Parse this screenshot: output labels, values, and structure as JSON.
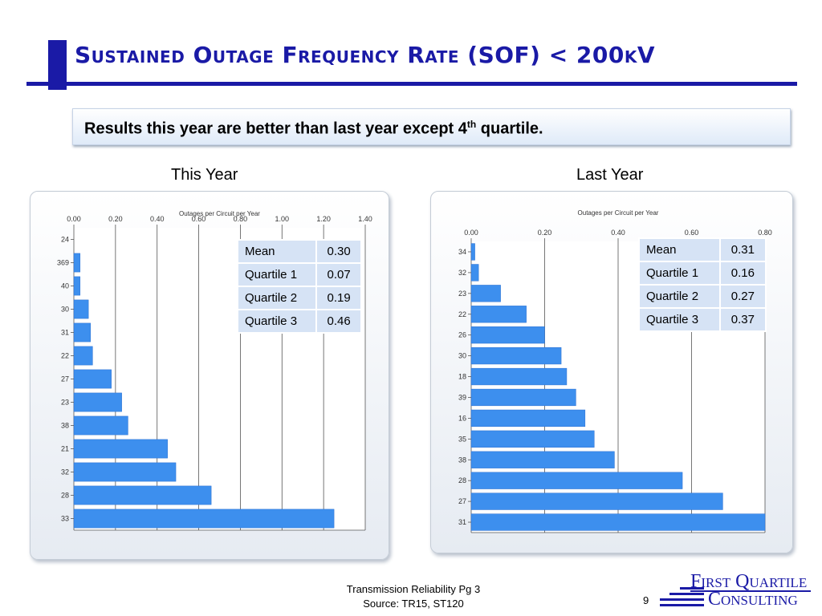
{
  "header": {
    "title": "Sustained Outage Frequency Rate (SOF) < 200kV"
  },
  "callout": {
    "text_main": "Results this year are better than last year except 4",
    "text_sup": "th",
    "text_tail": " quartile."
  },
  "charts": {
    "this_year": {
      "heading": "This Year",
      "stats": [
        {
          "label": "Mean",
          "value": "0.30"
        },
        {
          "label": "Quartile 1",
          "value": "0.07"
        },
        {
          "label": "Quartile 2",
          "value": "0.19"
        },
        {
          "label": "Quartile 3",
          "value": "0.46"
        }
      ]
    },
    "last_year": {
      "heading": "Last Year",
      "stats": [
        {
          "label": "Mean",
          "value": "0.31"
        },
        {
          "label": "Quartile 1",
          "value": "0.16"
        },
        {
          "label": "Quartile 2",
          "value": "0.27"
        },
        {
          "label": "Quartile 3",
          "value": "0.37"
        }
      ]
    }
  },
  "chart_data": [
    {
      "type": "bar",
      "orientation": "horizontal",
      "title": "Outages per Circuit per Year",
      "xlim": [
        0,
        1.4
      ],
      "ticks": [
        "0.00",
        "0.20",
        "0.40",
        "0.60",
        "0.80",
        "1.00",
        "1.20",
        "1.40"
      ],
      "categories": [
        "24",
        "369",
        "40",
        "30",
        "31",
        "22",
        "27",
        "23",
        "38",
        "21",
        "32",
        "28",
        "33"
      ],
      "values": [
        0.0,
        0.03,
        0.03,
        0.07,
        0.08,
        0.09,
        0.18,
        0.23,
        0.26,
        0.45,
        0.49,
        0.66,
        1.25
      ],
      "grid": true,
      "color": "#3d8fee"
    },
    {
      "type": "bar",
      "orientation": "horizontal",
      "title": "Outages per Circuit per Year",
      "xlim": [
        0,
        0.8
      ],
      "ticks": [
        "0.00",
        "0.20",
        "0.40",
        "0.60",
        "0.80"
      ],
      "categories": [
        "34",
        "32",
        "23",
        "22",
        "26",
        "30",
        "18",
        "39",
        "16",
        "35",
        "38",
        "28",
        "27",
        "31"
      ],
      "values": [
        0.01,
        0.02,
        0.08,
        0.15,
        0.2,
        0.245,
        0.26,
        0.285,
        0.31,
        0.335,
        0.39,
        0.575,
        0.685,
        0.8
      ],
      "grid": true,
      "color": "#3d8fee"
    }
  ],
  "footer": {
    "line1": "Transmission Reliability Pg 3",
    "line2": "Source: TR15, ST120",
    "page_number": "9"
  },
  "logo": {
    "line1": "First Quartile",
    "line2": "Consulting"
  }
}
